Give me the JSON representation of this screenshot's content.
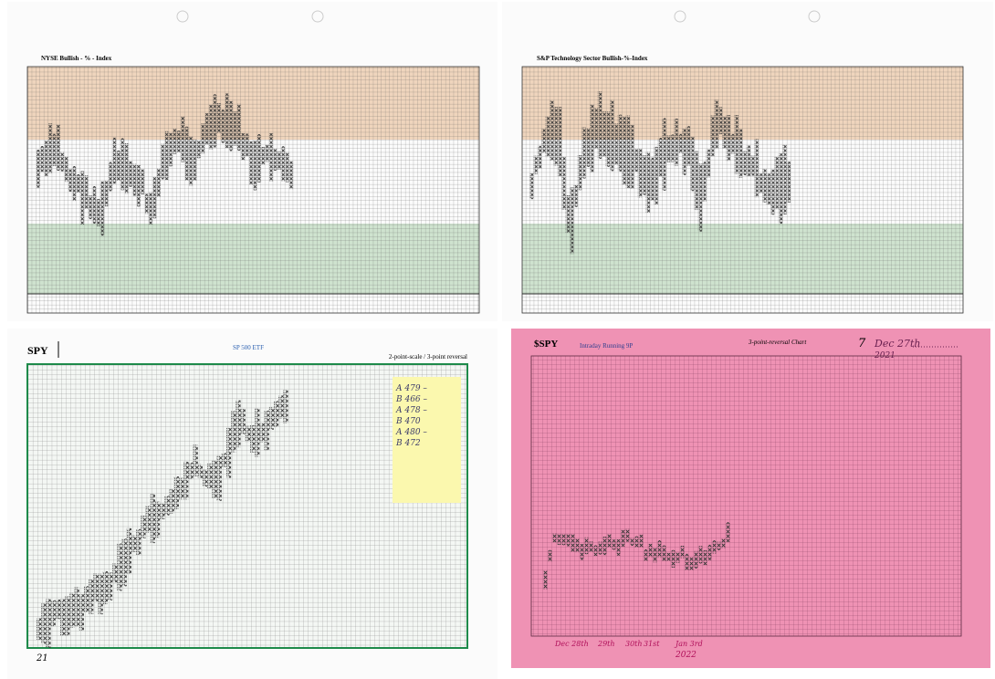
{
  "sheets": [
    {
      "title": "NYSE Bullish - % - Index"
    },
    {
      "title": "S&P Technology Sector Bullish-%-Index"
    },
    {
      "title": "SPY",
      "subtitle": "SP 500 ETF",
      "note": "2-point-scale / 3-point reversal",
      "sticky_note": [
        "A 479 –",
        "B 466 –",
        "A 478 –",
        "B 470",
        "A 480 –",
        "B 472"
      ],
      "footer": "21"
    },
    {
      "title": "$SPY",
      "subtitle": "Intraday Running 9P",
      "note": "3-point-reversal Chart",
      "page_number": "7",
      "date": "Dec 27th",
      "year": "2021",
      "dates": [
        "Dec 28th",
        "29th",
        "30th",
        "31st",
        "Jan 3rd"
      ],
      "footer": "2022"
    }
  ]
}
